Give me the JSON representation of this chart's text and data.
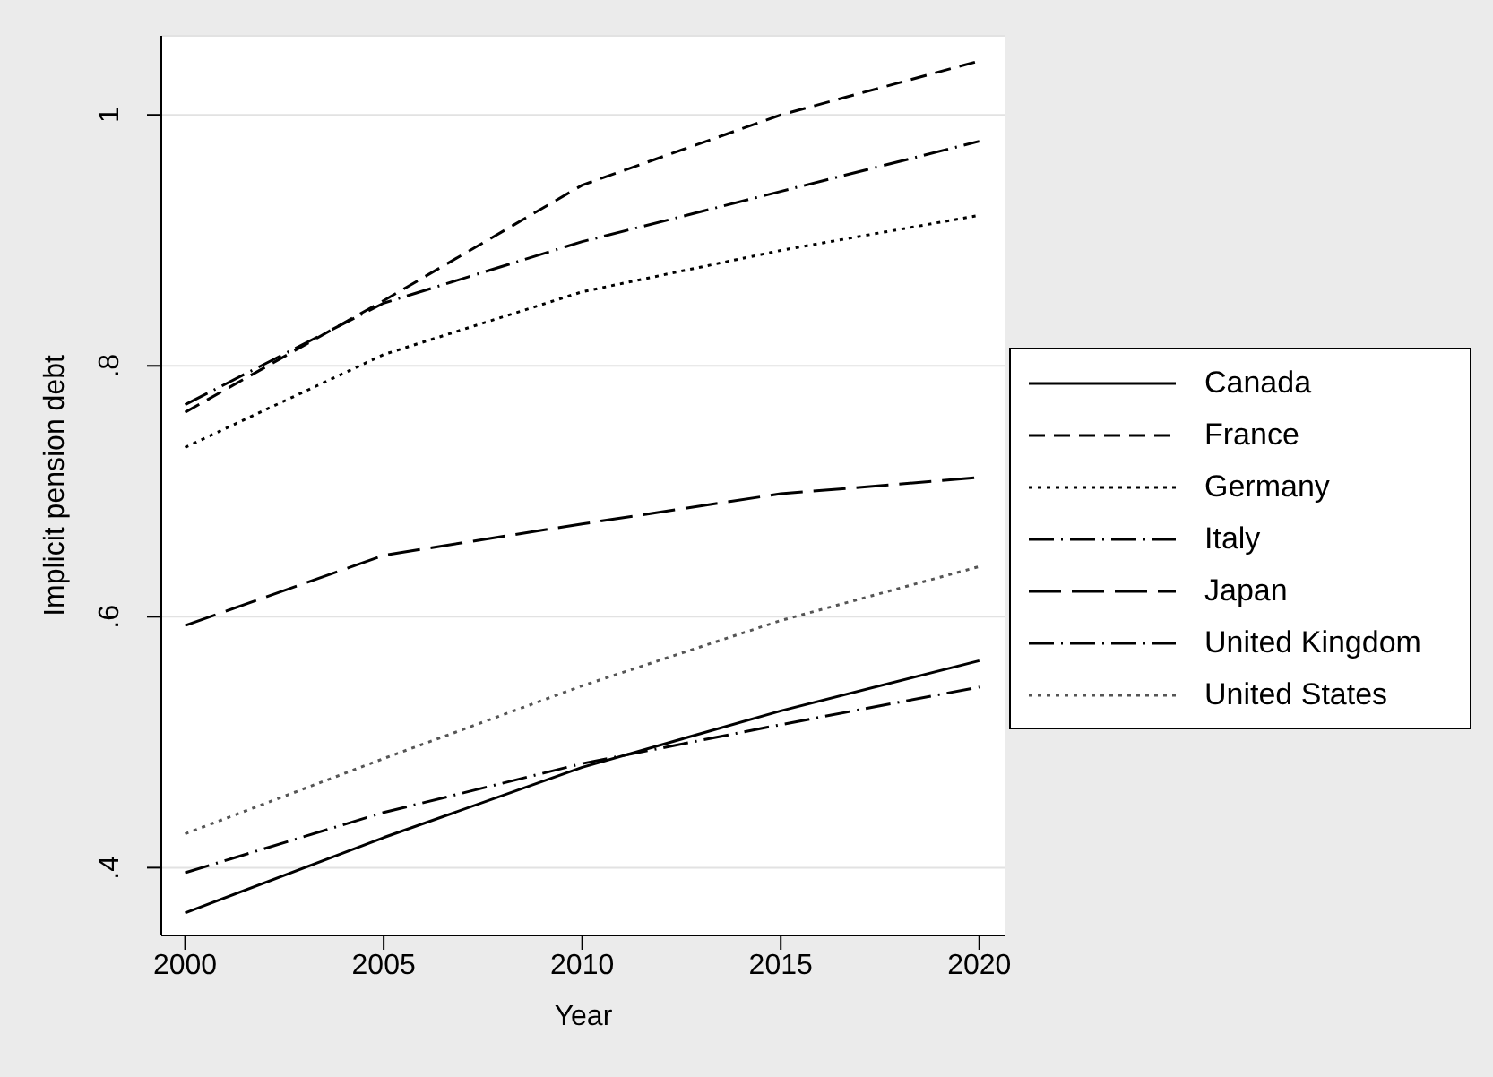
{
  "chart_data": {
    "type": "line",
    "xlabel": "Year",
    "ylabel": "Implicit pension debt",
    "x": [
      2000,
      2005,
      2010,
      2015,
      2020
    ],
    "xlim": [
      1999.4,
      2020.66
    ],
    "xticks": [
      2000,
      2005,
      2010,
      2015,
      2020
    ],
    "ylim": [
      0.346,
      1.063
    ],
    "yticks": [
      {
        "value": 0.4,
        "label": ".4"
      },
      {
        "value": 0.6,
        "label": ".6"
      },
      {
        "value": 0.8,
        "label": ".8"
      },
      1
    ],
    "grid": "y",
    "legend": "right",
    "marker": "none",
    "series": [
      {
        "name": "Canada",
        "color": "#000000",
        "line_style": "solid",
        "values": [
          0.364,
          0.424,
          0.48,
          0.525,
          0.565
        ]
      },
      {
        "name": "France",
        "color": "#000000",
        "line_style": "dashed",
        "values": [
          0.763,
          0.852,
          0.944,
          1.0,
          1.043
        ]
      },
      {
        "name": "Germany",
        "color": "#000000",
        "line_style": "dotted",
        "values": [
          0.735,
          0.809,
          0.859,
          0.892,
          0.92
        ]
      },
      {
        "name": "Italy",
        "color": "#000000",
        "line_style": "dashdot",
        "values": [
          0.769,
          0.85,
          0.899,
          0.939,
          0.979
        ]
      },
      {
        "name": "Japan",
        "color": "#000000",
        "line_style": "longdash",
        "values": [
          0.593,
          0.649,
          0.674,
          0.698,
          0.711
        ]
      },
      {
        "name": "United Kingdom",
        "color": "#000000",
        "line_style": "dashdot",
        "values": [
          0.396,
          0.444,
          0.483,
          0.514,
          0.544
        ]
      },
      {
        "name": "United States",
        "color": "#555555",
        "line_style": "dotted",
        "values": [
          0.427,
          0.487,
          0.545,
          0.597,
          0.64
        ]
      }
    ]
  }
}
